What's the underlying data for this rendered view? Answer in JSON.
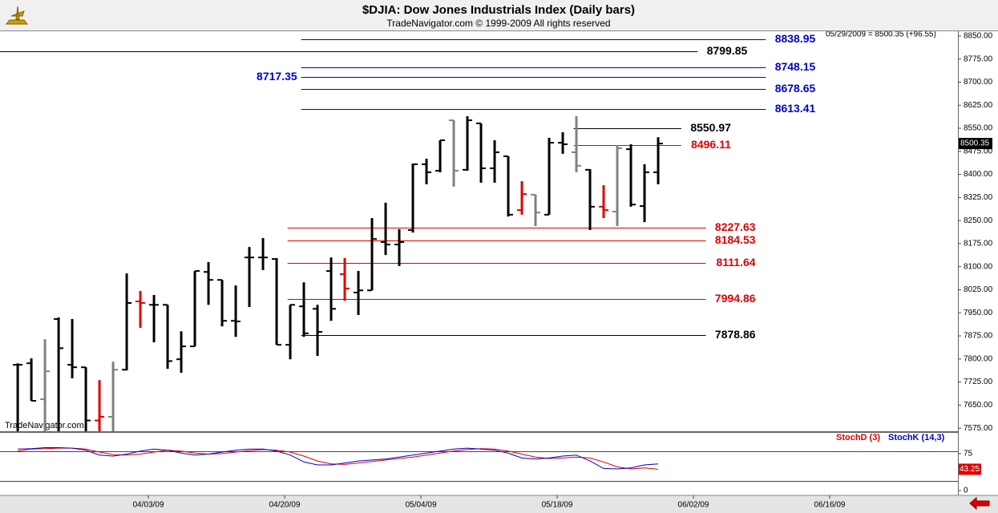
{
  "chart_data": [
    {
      "type": "ohlc",
      "title": "$DJIA:  Dow Jones Industrials Index  (Daily bars)",
      "subtitle": "TradeNavigator.com © 1999-2009 All rights reserved",
      "info": "05/29/2009 = 8500.35 (+96.55)",
      "watermark": "TradeNavigator.com",
      "open": [
        7781,
        7786,
        7669,
        7930,
        7781,
        7773,
        7600,
        7612,
        7765,
        7987,
        7976,
        7976,
        7799,
        7841,
        8083,
        8057,
        7924,
        8130,
        8130,
        8125,
        7846,
        7971,
        7963,
        8086,
        8076,
        8016,
        8023,
        8180,
        8172,
        8219,
        8433,
        8412,
        8576,
        8415,
        8566,
        8420,
        8459,
        8284,
        8334,
        8269,
        8503,
        8472,
        8415,
        8295,
        8279,
        8482,
        8297,
        8407
      ],
      "high": [
        7786,
        7802,
        7864,
        7935,
        7930,
        7773,
        7731,
        7791,
        8078,
        8021,
        8008,
        7976,
        7890,
        8086,
        8115,
        8057,
        8039,
        8164,
        8193,
        8128,
        7976,
        8049,
        7976,
        8130,
        8128,
        8086,
        8258,
        8308,
        8222,
        8435,
        8451,
        8511,
        8576,
        8589,
        8566,
        8511,
        8459,
        8378,
        8334,
        8519,
        8537,
        8589,
        8417,
        8365,
        8495,
        8498,
        8433,
        8521
      ],
      "low": [
        7550,
        7664,
        7560,
        7560,
        7737,
        7560,
        7560,
        7560,
        7763,
        7901,
        7854,
        7768,
        7755,
        7841,
        7976,
        7906,
        7872,
        7969,
        8089,
        7846,
        7799,
        7872,
        7810,
        7924,
        7989,
        7943,
        8023,
        8138,
        8102,
        8211,
        8368,
        8407,
        8360,
        8412,
        8373,
        8373,
        8263,
        8269,
        8232,
        8269,
        8467,
        8407,
        8219,
        8258,
        8232,
        8295,
        8245,
        8368
      ],
      "close": [
        7781,
        7664,
        7760,
        7835,
        7773,
        7600,
        7612,
        7765,
        7982,
        7982,
        7976,
        7793,
        7841,
        8086,
        8057,
        7924,
        7922,
        8130,
        8130,
        7846,
        7976,
        7883,
        7888,
        7963,
        8029,
        8023,
        8190,
        8172,
        8180,
        8433,
        8407,
        8511,
        8412,
        8576,
        8420,
        8472,
        8269,
        8336,
        8276,
        8503,
        8498,
        8428,
        8295,
        8284,
        8485,
        8302,
        8407,
        8500.35
      ],
      "colors": [
        "#000000",
        "#000000",
        "#808080",
        "#000000",
        "#000000",
        "#000000",
        "#e00000",
        "#808080",
        "#000000",
        "#e00000",
        "#000000",
        "#000000",
        "#000000",
        "#000000",
        "#000000",
        "#000000",
        "#000000",
        "#000000",
        "#000000",
        "#000000",
        "#000000",
        "#000000",
        "#000000",
        "#000000",
        "#e00000",
        "#000000",
        "#000000",
        "#000000",
        "#000000",
        "#000000",
        "#000000",
        "#000000",
        "#808080",
        "#000000",
        "#000000",
        "#000000",
        "#000000",
        "#e00000",
        "#808080",
        "#000000",
        "#000000",
        "#808080",
        "#000000",
        "#e00000",
        "#808080",
        "#000000",
        "#000000",
        "#000000"
      ],
      "levels": [
        {
          "value": 8838.95,
          "color": "#0000cc",
          "from": 20.8,
          "to": 54.9,
          "label_side": "right"
        },
        {
          "value": 8799.85,
          "color": "#000000",
          "from": -1.3,
          "to": 49.9,
          "label_side": "right"
        },
        {
          "value": 8748.15,
          "color": "#0000cc",
          "from": 20.8,
          "to": 54.9,
          "label_side": "right"
        },
        {
          "value": 8717.35,
          "color": "#0000cc",
          "from": 20.8,
          "to": 54.9,
          "label_side": "left"
        },
        {
          "value": 8678.65,
          "color": "#0000cc",
          "from": 20.8,
          "to": 54.9,
          "label_side": "right"
        },
        {
          "value": 8613.41,
          "color": "#0000cc",
          "from": 20.8,
          "to": 54.9,
          "label_side": "right"
        },
        {
          "value": 8550.97,
          "color": "#000000",
          "from": 40.8,
          "to": 48.7,
          "label_side": "right"
        },
        {
          "value": 8496.11,
          "color": "#dd0000",
          "from": 40.8,
          "to": 48.7,
          "label_side": "right"
        },
        {
          "value": 8227.63,
          "color": "#dd0000",
          "from": 19.8,
          "to": 50.5,
          "label_side": "right"
        },
        {
          "value": 8184.53,
          "color": "#dd0000",
          "from": 19.8,
          "to": 50.5,
          "label_side": "right"
        },
        {
          "value": 8111.64,
          "color": "#dd0000",
          "from": 19.8,
          "to": 50.5,
          "label_side": "right"
        },
        {
          "value": 7994.86,
          "color": "#dd0000",
          "from": 19.8,
          "to": 50.5,
          "label_side": "right"
        },
        {
          "value": 7878.86,
          "color": "#000000",
          "from": 20.8,
          "to": 50.5,
          "label_side": "right"
        }
      ],
      "xlim": [
        -1.3,
        69
      ],
      "xticks": [
        {
          "value": 9,
          "label": "04/03/09"
        },
        {
          "value": 19,
          "label": "04/20/09"
        },
        {
          "value": 29,
          "label": "05/04/09"
        },
        {
          "value": 39,
          "label": "05/18/09"
        },
        {
          "value": 49,
          "label": "06/02/09"
        },
        {
          "value": 59,
          "label": "06/16/09"
        }
      ],
      "ylim": [
        7565,
        8868
      ],
      "yticks": [
        {
          "value": 7575,
          "label": "7575.00"
        },
        {
          "value": 7650,
          "label": "7650.00"
        },
        {
          "value": 7725,
          "label": "7725.00"
        },
        {
          "value": 7800,
          "label": "7800.00"
        },
        {
          "value": 7875,
          "label": "7875.00"
        },
        {
          "value": 7950,
          "label": "7950.00"
        },
        {
          "value": 8025,
          "label": "8025.00"
        },
        {
          "value": 8100,
          "label": "8100.00"
        },
        {
          "value": 8175,
          "label": "8175.00"
        },
        {
          "value": 8250,
          "label": "8250.00"
        },
        {
          "value": 8325,
          "label": "8325.00"
        },
        {
          "value": 8400,
          "label": "8400.00"
        },
        {
          "value": 8475,
          "label": "8475.00"
        },
        {
          "value": 8550,
          "label": "8550.00"
        },
        {
          "value": 8625,
          "label": "8625.00"
        },
        {
          "value": 8700,
          "label": "8700.00"
        },
        {
          "value": 8775,
          "label": "8775.00"
        },
        {
          "value": 8850,
          "label": "8850.00"
        }
      ]
    },
    {
      "type": "line",
      "series": [
        {
          "name": "StochD (3)",
          "color": "#dd0000",
          "values": [
            80,
            84,
            85,
            86,
            86,
            84,
            78,
            73,
            72,
            74,
            78,
            82,
            80,
            76,
            74,
            75,
            78,
            81,
            83,
            82,
            78,
            70,
            60,
            54,
            53,
            56,
            59,
            62,
            65,
            68,
            72,
            76,
            80,
            83,
            85,
            84,
            80,
            74,
            68,
            65,
            66,
            68,
            66,
            58,
            48,
            44,
            46,
            43.25
          ]
        },
        {
          "name": "StochK (14,3)",
          "color": "#0000cc",
          "values": [
            84,
            85,
            87,
            87,
            86,
            82,
            72,
            70,
            74,
            80,
            84,
            82,
            76,
            72,
            74,
            78,
            82,
            84,
            84,
            80,
            72,
            58,
            52,
            52,
            56,
            60,
            62,
            64,
            68,
            72,
            76,
            80,
            84,
            86,
            84,
            82,
            76,
            66,
            64,
            66,
            70,
            72,
            60,
            45,
            44,
            46,
            52,
            54
          ]
        }
      ],
      "reference_lines": [
        80,
        20
      ],
      "xlim": [
        -1.3,
        69
      ],
      "ylim": [
        -8,
        117
      ],
      "yticks": [
        0,
        75
      ]
    }
  ]
}
